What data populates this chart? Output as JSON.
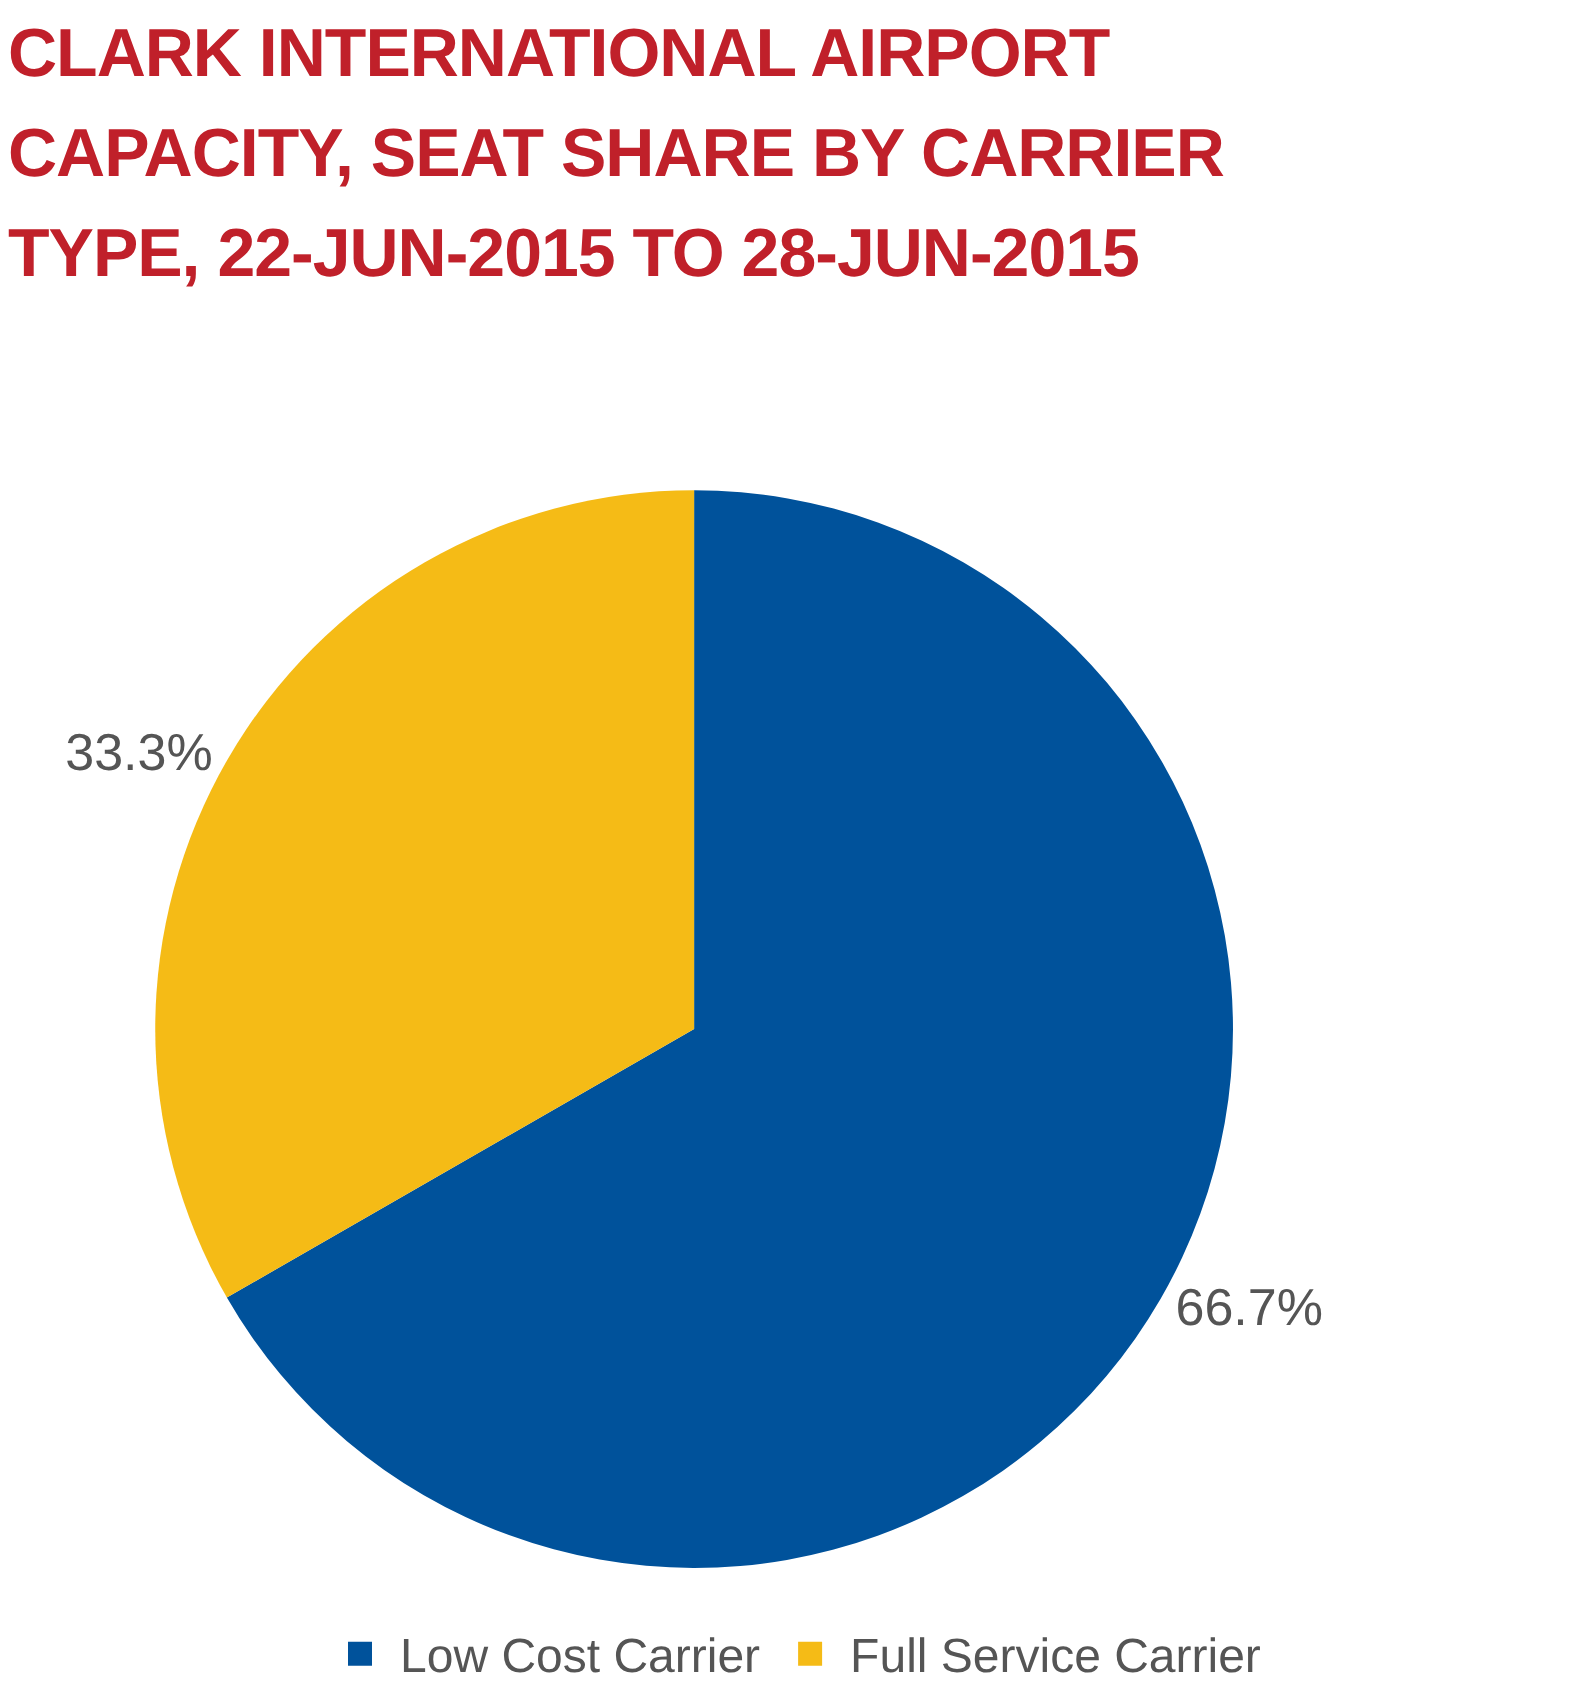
{
  "chart_data": {
    "type": "pie",
    "title": "CLARK INTERNATIONAL AIRPORT CAPACITY, SEAT SHARE BY CARRIER TYPE, 22-JUN-2015 TO 28-JUN-2015",
    "categories": [
      "Low Cost Carrier",
      "Full Service Carrier"
    ],
    "values": [
      66.7,
      33.3
    ],
    "value_labels": [
      "66.7%",
      "33.3%"
    ],
    "colors": [
      "#00529b",
      "#f5bb16"
    ],
    "legend": "bottom"
  }
}
